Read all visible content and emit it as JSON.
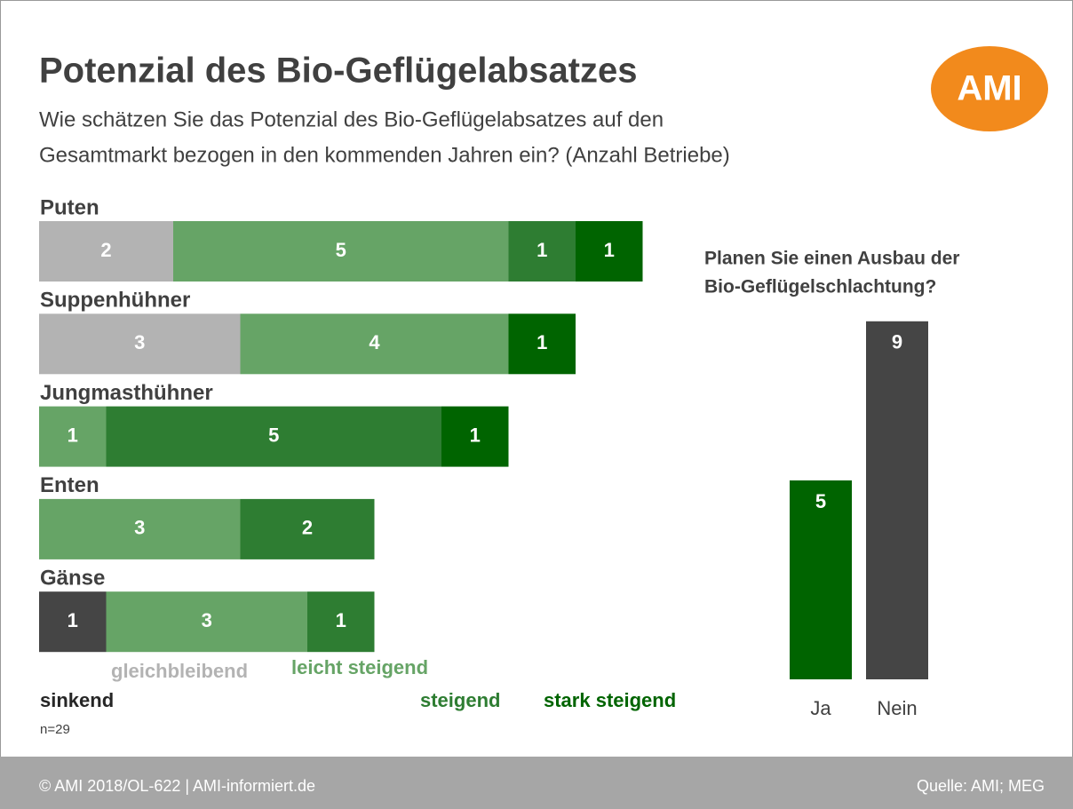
{
  "header": {
    "title": "Potenzial des Bio-Geflügelabsatzes",
    "subtitle": [
      "Wie schätzen Sie das Potenzial des Bio-Geflügelabsatzes auf den",
      "Gesamtmarkt bezogen in den kommenden Jahren ein? (Anzahl Betriebe)"
    ]
  },
  "logo": "AMI",
  "chart_data": [
    {
      "type": "stacked_bar",
      "orientation": "horizontal",
      "categories": [
        "Puten",
        "Suppenhühner",
        "Jungmasthühner",
        "Enten",
        "Gänse"
      ],
      "series": [
        {
          "name": "sinkend",
          "color": "#454545",
          "values": [
            null,
            null,
            null,
            null,
            1
          ]
        },
        {
          "name": "gleichbleibend",
          "color": "#b3b3b3",
          "values": [
            2,
            3,
            null,
            null,
            null
          ]
        },
        {
          "name": "leicht steigend",
          "color": "#66a466",
          "values": [
            5,
            4,
            1,
            3,
            3
          ]
        },
        {
          "name": "steigend",
          "color": "#2e7d32",
          "values": [
            1,
            null,
            5,
            2,
            1
          ]
        },
        {
          "name": "stark steigend",
          "color": "#006400",
          "values": [
            1,
            1,
            1,
            null,
            null
          ]
        }
      ]
    },
    {
      "type": "bar",
      "title": [
        "Planen Sie einen Ausbau der",
        "Bio-Geflügelschlachtung?"
      ],
      "categories": [
        "Ja",
        "Nein"
      ],
      "values": [
        5,
        9
      ],
      "colors": [
        "#006400",
        "#454545"
      ]
    }
  ],
  "note": "n=29",
  "footer": {
    "left": "© AMI 2018/OL-622 | AMI-informiert.de",
    "right": "Quelle: AMI; MEG"
  }
}
